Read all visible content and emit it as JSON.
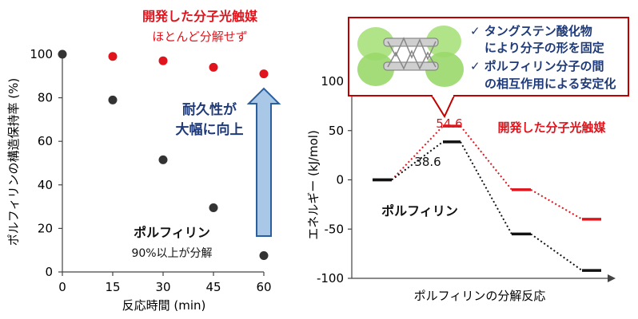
{
  "colors": {
    "red": "#e0141c",
    "dark": "#333333",
    "navy": "#1f3a78",
    "arrow_fill": "#a9c7e6",
    "arrow_stroke": "#2c5f9e",
    "box_border": "#c00000",
    "callout_text": "#1f3a78"
  },
  "chart_data": [
    {
      "type": "scatter",
      "xlabel": "反応時間 (min)",
      "ylabel": "ポルフィリンの構造保持率 (%)",
      "xlim": [
        0,
        60
      ],
      "ylim": [
        0,
        100
      ],
      "x_ticks": [
        "0",
        "15",
        "30",
        "45",
        "60"
      ],
      "y_ticks": [
        "0",
        "20",
        "40",
        "60",
        "80",
        "100"
      ],
      "grid": false,
      "series": [
        {
          "name": "開発した分子光触媒",
          "color": "#e0141c",
          "points": [
            [
              15,
              99
            ],
            [
              30,
              97
            ],
            [
              45,
              94
            ],
            [
              60,
              91
            ]
          ]
        },
        {
          "name": "ポルフィリン",
          "color": "#333333",
          "points": [
            [
              0,
              100
            ],
            [
              15,
              79
            ],
            [
              30,
              51.5
            ],
            [
              45,
              29.5
            ],
            [
              60,
              7.5
            ]
          ]
        }
      ],
      "annotations": {
        "red_title": "開発した分子光触媒",
        "red_sub": "ほとんど分解せず",
        "black_title": "ポルフィリン",
        "black_sub": "90%以上が分解",
        "arrow_line1": "耐久性が",
        "arrow_line2": "大幅に向上"
      }
    },
    {
      "type": "line",
      "xlabel": "ポルフィリンの分解反応",
      "ylabel": "エネルギー (kJ/mol)",
      "ylim": [
        -100,
        100
      ],
      "y_ticks": [
        "100",
        "50",
        "0",
        "-50",
        "-100"
      ],
      "series": [
        {
          "name": "開発した分子光触媒",
          "color": "#e0141c",
          "levels": [
            0,
            54.6,
            -10,
            -40
          ]
        },
        {
          "name": "ポルフィリン",
          "color": "#111111",
          "levels": [
            0,
            38.6,
            -55,
            -92
          ]
        }
      ],
      "value_labels": {
        "red_peak": "54.6",
        "black_peak": "38.6"
      },
      "legend_labels": {
        "red": "開発した分子光触媒",
        "black": "ポルフィリン"
      },
      "callout": {
        "line1": "✓ タングステン酸化物",
        "line2": "により分子の形を固定",
        "line3": "✓ ポルフィリン分子の間",
        "line4": "の相互作用による安定化"
      }
    }
  ]
}
